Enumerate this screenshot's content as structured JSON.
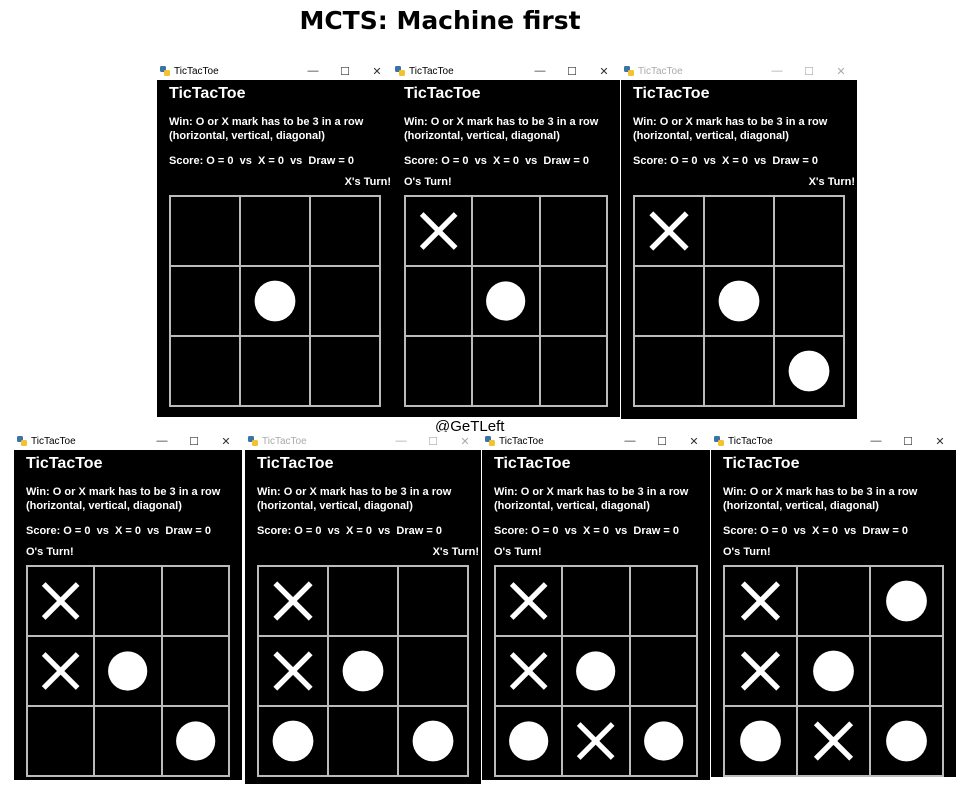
{
  "page_title": "MCTS: Machine first",
  "watermark": "@GeTLeft",
  "window_title": "TicTacToe",
  "app_heading": "TicTacToe",
  "rule_line1": "Win: O or X mark has to be 3 in a row",
  "rule_line2": "(horizontal, vertical, diagonal)",
  "score": "Score: O = 0  vs  X = 0  vs  Draw = 0",
  "controls": {
    "minimize": "—",
    "maximize": "☐",
    "close": "✕"
  },
  "colors": {
    "background": "#000000",
    "mark": "#ffffff",
    "grid": "#bbbbbb"
  },
  "snapshots": [
    {
      "turn": "X's Turn!",
      "board": [
        "",
        "",
        "",
        "",
        "O",
        "",
        "",
        "",
        ""
      ]
    },
    {
      "turn": "O's Turn!",
      "board": [
        "X",
        "",
        "",
        "",
        "O",
        "",
        "",
        "",
        ""
      ]
    },
    {
      "turn": "X's Turn!",
      "board": [
        "X",
        "",
        "",
        "",
        "O",
        "",
        "",
        "",
        "O"
      ]
    },
    {
      "turn": "O's Turn!",
      "board": [
        "X",
        "",
        "",
        "X",
        "O",
        "",
        "",
        "",
        "O"
      ]
    },
    {
      "turn": "X's Turn!",
      "board": [
        "X",
        "",
        "",
        "X",
        "O",
        "",
        "O",
        "",
        "O"
      ]
    },
    {
      "turn": "O's Turn!",
      "board": [
        "X",
        "",
        "",
        "X",
        "O",
        "",
        "O",
        "X",
        "O"
      ]
    },
    {
      "turn": "O's Turn!",
      "board": [
        "X",
        "",
        "O",
        "X",
        "O",
        "",
        "O",
        "X",
        "O"
      ]
    }
  ]
}
